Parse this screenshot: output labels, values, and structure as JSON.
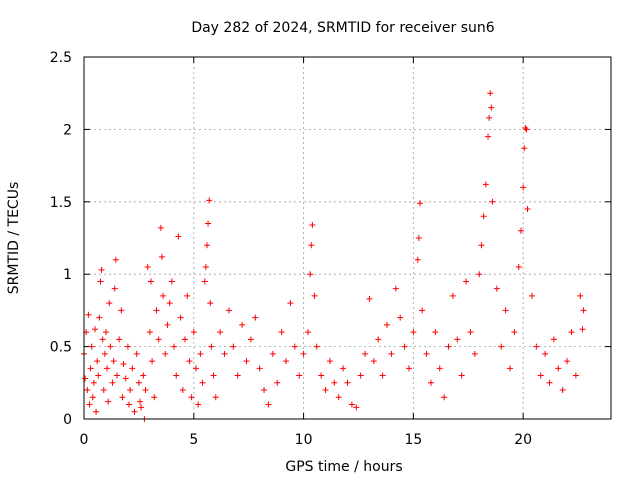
{
  "chart_data": {
    "type": "scatter",
    "title": "Day 282 of 2024, SRMTID for receiver sun6",
    "xlabel": "GPS time / hours",
    "ylabel": "SRMTID / TECUs",
    "xlim": [
      0,
      24
    ],
    "ylim": [
      0,
      2.5
    ],
    "xticks": [
      0,
      5,
      10,
      15,
      20
    ],
    "xtick_labels": [
      "0",
      "5",
      "10",
      "15",
      "20"
    ],
    "yticks": [
      0,
      0.5,
      1,
      1.5,
      2,
      2.5
    ],
    "ytick_labels": [
      "0",
      "0.5",
      "1",
      "1.5",
      "2",
      "2.5"
    ],
    "grid": true,
    "marker": "+",
    "series": [
      {
        "name": "SRMTID",
        "color": "#ff0000",
        "points": [
          [
            0.0,
            0.45
          ],
          [
            0.05,
            0.28
          ],
          [
            0.1,
            0.6
          ],
          [
            0.15,
            0.2
          ],
          [
            0.2,
            0.72
          ],
          [
            0.25,
            0.1
          ],
          [
            0.3,
            0.35
          ],
          [
            0.35,
            0.5
          ],
          [
            0.4,
            0.15
          ],
          [
            0.45,
            0.25
          ],
          [
            0.5,
            0.62
          ],
          [
            0.55,
            0.05
          ],
          [
            0.6,
            0.4
          ],
          [
            0.65,
            0.3
          ],
          [
            0.7,
            0.7
          ],
          [
            0.75,
            0.95
          ],
          [
            0.8,
            1.03
          ],
          [
            0.85,
            0.55
          ],
          [
            0.9,
            0.2
          ],
          [
            0.95,
            0.45
          ],
          [
            1.0,
            0.6
          ],
          [
            1.05,
            0.35
          ],
          [
            1.1,
            0.12
          ],
          [
            1.15,
            0.8
          ],
          [
            1.2,
            0.5
          ],
          [
            1.3,
            0.25
          ],
          [
            1.35,
            0.4
          ],
          [
            1.4,
            0.9
          ],
          [
            1.45,
            1.1
          ],
          [
            1.5,
            0.3
          ],
          [
            1.6,
            0.55
          ],
          [
            1.7,
            0.75
          ],
          [
            1.75,
            0.15
          ],
          [
            1.8,
            0.38
          ],
          [
            1.9,
            0.28
          ],
          [
            2.0,
            0.5
          ],
          [
            2.05,
            0.1
          ],
          [
            2.1,
            0.2
          ],
          [
            2.2,
            0.35
          ],
          [
            2.3,
            0.05
          ],
          [
            2.4,
            0.45
          ],
          [
            2.5,
            0.25
          ],
          [
            2.55,
            0.12
          ],
          [
            2.6,
            0.08
          ],
          [
            2.7,
            0.3
          ],
          [
            2.75,
            0.0
          ],
          [
            2.8,
            0.2
          ],
          [
            2.9,
            1.05
          ],
          [
            3.0,
            0.6
          ],
          [
            3.05,
            0.95
          ],
          [
            3.1,
            0.4
          ],
          [
            3.2,
            0.15
          ],
          [
            3.3,
            0.75
          ],
          [
            3.4,
            0.55
          ],
          [
            3.5,
            1.32
          ],
          [
            3.55,
            1.12
          ],
          [
            3.6,
            0.85
          ],
          [
            3.7,
            0.45
          ],
          [
            3.8,
            0.65
          ],
          [
            3.9,
            0.8
          ],
          [
            4.0,
            0.95
          ],
          [
            4.1,
            0.5
          ],
          [
            4.2,
            0.3
          ],
          [
            4.3,
            1.26
          ],
          [
            4.4,
            0.7
          ],
          [
            4.5,
            0.2
          ],
          [
            4.6,
            0.55
          ],
          [
            4.7,
            0.85
          ],
          [
            4.8,
            0.4
          ],
          [
            4.9,
            0.15
          ],
          [
            5.0,
            0.6
          ],
          [
            5.1,
            0.35
          ],
          [
            5.2,
            0.1
          ],
          [
            5.3,
            0.45
          ],
          [
            5.4,
            0.25
          ],
          [
            5.5,
            0.95
          ],
          [
            5.55,
            1.05
          ],
          [
            5.6,
            1.2
          ],
          [
            5.65,
            1.35
          ],
          [
            5.7,
            1.51
          ],
          [
            5.75,
            0.8
          ],
          [
            5.8,
            0.5
          ],
          [
            5.9,
            0.3
          ],
          [
            6.0,
            0.15
          ],
          [
            6.2,
            0.6
          ],
          [
            6.4,
            0.45
          ],
          [
            6.6,
            0.75
          ],
          [
            6.8,
            0.5
          ],
          [
            7.0,
            0.3
          ],
          [
            7.2,
            0.65
          ],
          [
            7.4,
            0.4
          ],
          [
            7.6,
            0.55
          ],
          [
            7.8,
            0.7
          ],
          [
            8.0,
            0.35
          ],
          [
            8.2,
            0.2
          ],
          [
            8.4,
            0.1
          ],
          [
            8.6,
            0.45
          ],
          [
            8.8,
            0.25
          ],
          [
            9.0,
            0.6
          ],
          [
            9.2,
            0.4
          ],
          [
            9.4,
            0.8
          ],
          [
            9.6,
            0.5
          ],
          [
            9.8,
            0.3
          ],
          [
            10.0,
            0.45
          ],
          [
            10.2,
            0.6
          ],
          [
            10.3,
            1.0
          ],
          [
            10.35,
            1.2
          ],
          [
            10.4,
            1.34
          ],
          [
            10.5,
            0.85
          ],
          [
            10.6,
            0.5
          ],
          [
            10.8,
            0.3
          ],
          [
            11.0,
            0.2
          ],
          [
            11.2,
            0.4
          ],
          [
            11.4,
            0.25
          ],
          [
            11.6,
            0.15
          ],
          [
            11.8,
            0.35
          ],
          [
            12.0,
            0.25
          ],
          [
            12.2,
            0.1
          ],
          [
            12.4,
            0.08
          ],
          [
            12.6,
            0.3
          ],
          [
            12.8,
            0.45
          ],
          [
            13.0,
            0.83
          ],
          [
            13.2,
            0.4
          ],
          [
            13.4,
            0.55
          ],
          [
            13.6,
            0.3
          ],
          [
            13.8,
            0.65
          ],
          [
            14.0,
            0.45
          ],
          [
            14.2,
            0.9
          ],
          [
            14.4,
            0.7
          ],
          [
            14.6,
            0.5
          ],
          [
            14.8,
            0.35
          ],
          [
            15.0,
            0.6
          ],
          [
            15.2,
            1.1
          ],
          [
            15.25,
            1.25
          ],
          [
            15.3,
            1.49
          ],
          [
            15.4,
            0.75
          ],
          [
            15.6,
            0.45
          ],
          [
            15.8,
            0.25
          ],
          [
            16.0,
            0.6
          ],
          [
            16.2,
            0.35
          ],
          [
            16.4,
            0.15
          ],
          [
            16.6,
            0.5
          ],
          [
            16.8,
            0.85
          ],
          [
            17.0,
            0.55
          ],
          [
            17.2,
            0.3
          ],
          [
            17.4,
            0.95
          ],
          [
            17.6,
            0.6
          ],
          [
            17.8,
            0.45
          ],
          [
            18.0,
            1.0
          ],
          [
            18.1,
            1.2
          ],
          [
            18.2,
            1.4
          ],
          [
            18.3,
            1.62
          ],
          [
            18.4,
            1.95
          ],
          [
            18.45,
            2.08
          ],
          [
            18.5,
            2.25
          ],
          [
            18.55,
            2.15
          ],
          [
            18.6,
            1.5
          ],
          [
            18.8,
            0.9
          ],
          [
            19.0,
            0.5
          ],
          [
            19.2,
            0.75
          ],
          [
            19.4,
            0.35
          ],
          [
            19.6,
            0.6
          ],
          [
            19.8,
            1.05
          ],
          [
            19.9,
            1.3
          ],
          [
            20.0,
            1.6
          ],
          [
            20.05,
            1.87
          ],
          [
            20.1,
            2.01
          ],
          [
            20.15,
            2.0
          ],
          [
            20.2,
            1.45
          ],
          [
            20.4,
            0.85
          ],
          [
            20.6,
            0.5
          ],
          [
            20.8,
            0.3
          ],
          [
            21.0,
            0.45
          ],
          [
            21.2,
            0.25
          ],
          [
            21.4,
            0.55
          ],
          [
            21.6,
            0.35
          ],
          [
            21.8,
            0.2
          ],
          [
            22.0,
            0.4
          ],
          [
            22.2,
            0.6
          ],
          [
            22.4,
            0.3
          ],
          [
            22.6,
            0.85
          ],
          [
            22.7,
            0.62
          ],
          [
            22.75,
            0.75
          ]
        ]
      }
    ]
  }
}
